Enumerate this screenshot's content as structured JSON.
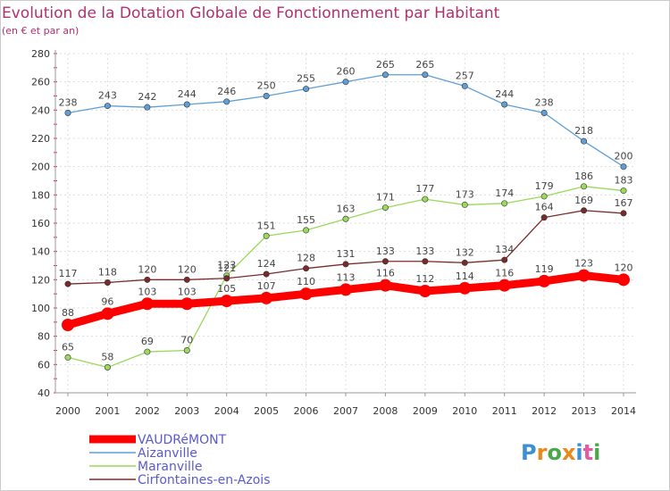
{
  "chart_data": {
    "type": "line",
    "title": "Evolution de la Dotation Globale de Fonctionnement par Habitant",
    "subtitle": "(en € et par an)",
    "xlabel": "",
    "ylabel": "",
    "ylim": [
      40,
      280
    ],
    "yticks": [
      40,
      60,
      80,
      100,
      120,
      140,
      160,
      180,
      200,
      220,
      240,
      260,
      280
    ],
    "x": [
      "2000",
      "2001",
      "2002",
      "2003",
      "2004",
      "2005",
      "2006",
      "2007",
      "2008",
      "2009",
      "2010",
      "2011",
      "2012",
      "2013",
      "2014"
    ],
    "grid": true,
    "legend_position": "bottom-left",
    "series": [
      {
        "name": "VAUDRéMONT",
        "color": "#ff0000",
        "values": [
          88,
          96,
          103,
          103,
          105,
          107,
          110,
          113,
          116,
          112,
          114,
          116,
          119,
          123,
          120
        ]
      },
      {
        "name": "Aizanville",
        "color": "#5f9fd6",
        "values": [
          238,
          243,
          242,
          244,
          246,
          250,
          255,
          260,
          265,
          265,
          257,
          244,
          238,
          218,
          200
        ]
      },
      {
        "name": "Maranville",
        "color": "#99d95c",
        "values": [
          65,
          58,
          69,
          70,
          123,
          151,
          155,
          163,
          171,
          177,
          173,
          174,
          179,
          186,
          183
        ]
      },
      {
        "name": "Cirfontaines-en-Azois",
        "color": "#7a2a2a",
        "values": [
          117,
          118,
          120,
          120,
          121,
          124,
          128,
          131,
          133,
          133,
          132,
          134,
          164,
          169,
          167
        ]
      }
    ]
  },
  "branding": {
    "logo_text": "Proxiti"
  }
}
